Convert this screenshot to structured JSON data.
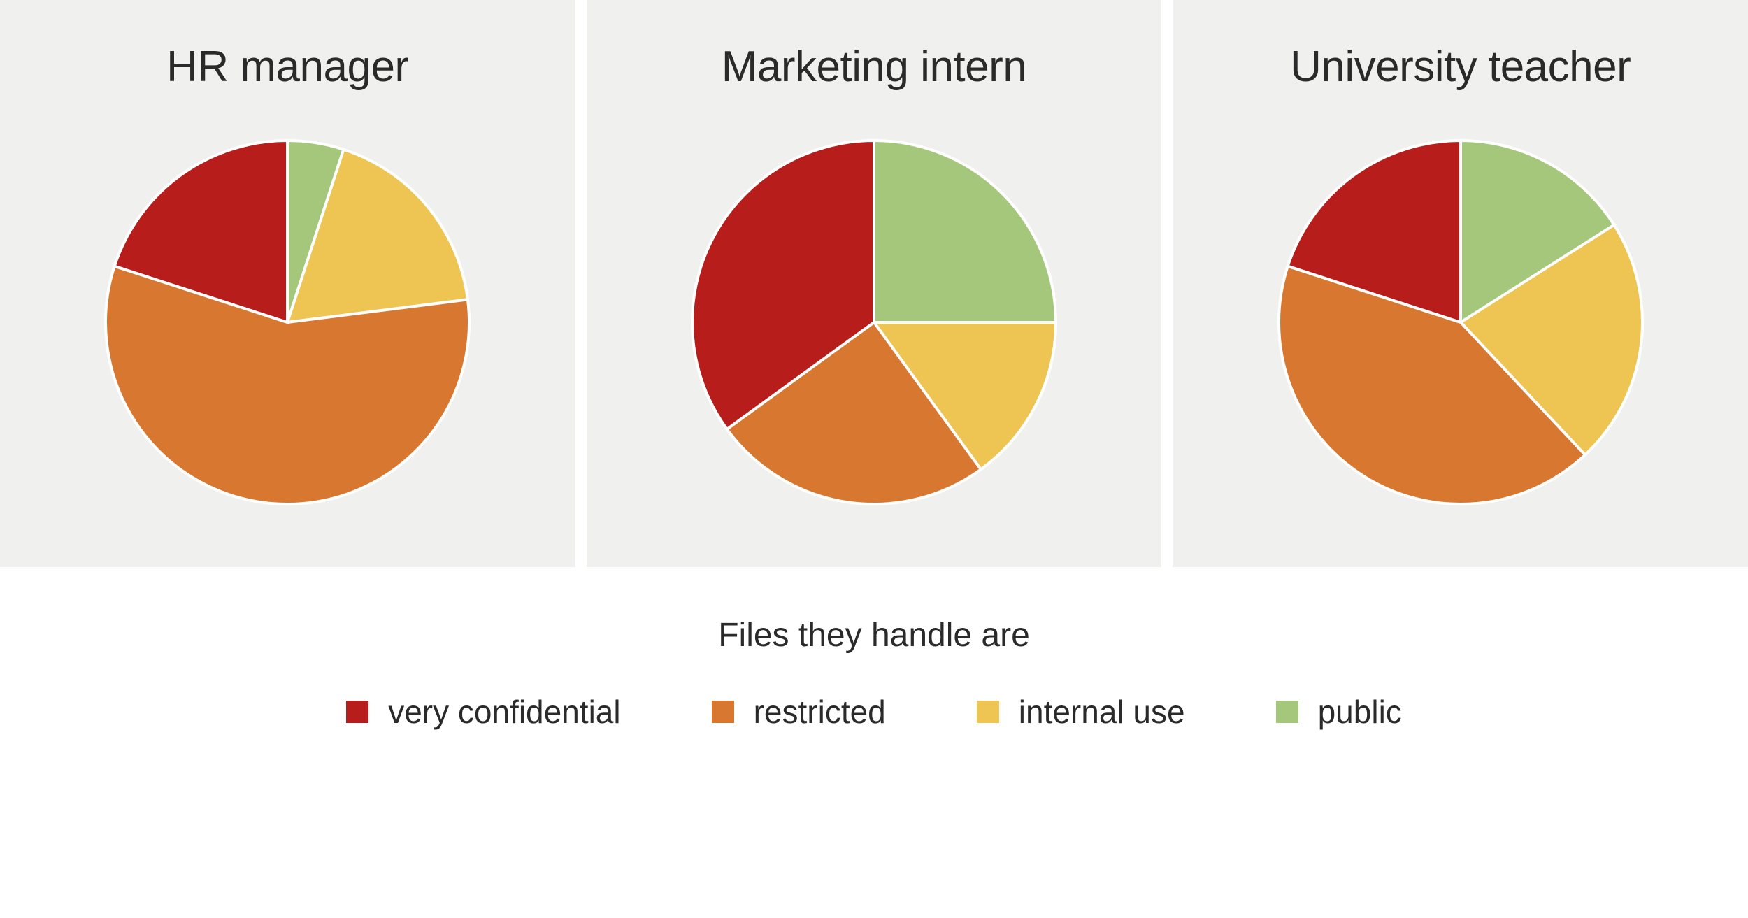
{
  "background_color": "#ffffff",
  "panel_background": "#f0f0ef",
  "title_color": "#2a2a2a",
  "title_fontsize": 62,
  "caption": "Files they handle are",
  "caption_fontsize": 48,
  "legend_fontsize": 46,
  "slice_stroke": "#ffffff",
  "slice_stroke_width": 4,
  "categories": [
    {
      "key": "very_confidential",
      "label": "very confidential",
      "color": "#b61d1b"
    },
    {
      "key": "restricted",
      "label": "restricted",
      "color": "#d8772f"
    },
    {
      "key": "internal_use",
      "label": "internal use",
      "color": "#eec452"
    },
    {
      "key": "public",
      "label": "public",
      "color": "#a5c77b"
    }
  ],
  "charts": [
    {
      "title": "HR manager",
      "type": "pie",
      "values": {
        "public": 5,
        "internal_use": 18,
        "restricted": 57,
        "very_confidential": 20
      }
    },
    {
      "title": "Marketing intern",
      "type": "pie",
      "values": {
        "public": 25,
        "internal_use": 15,
        "restricted": 25,
        "very_confidential": 35
      }
    },
    {
      "title": "University teacher",
      "type": "pie",
      "values": {
        "public": 16,
        "internal_use": 22,
        "restricted": 42,
        "very_confidential": 20
      }
    }
  ]
}
